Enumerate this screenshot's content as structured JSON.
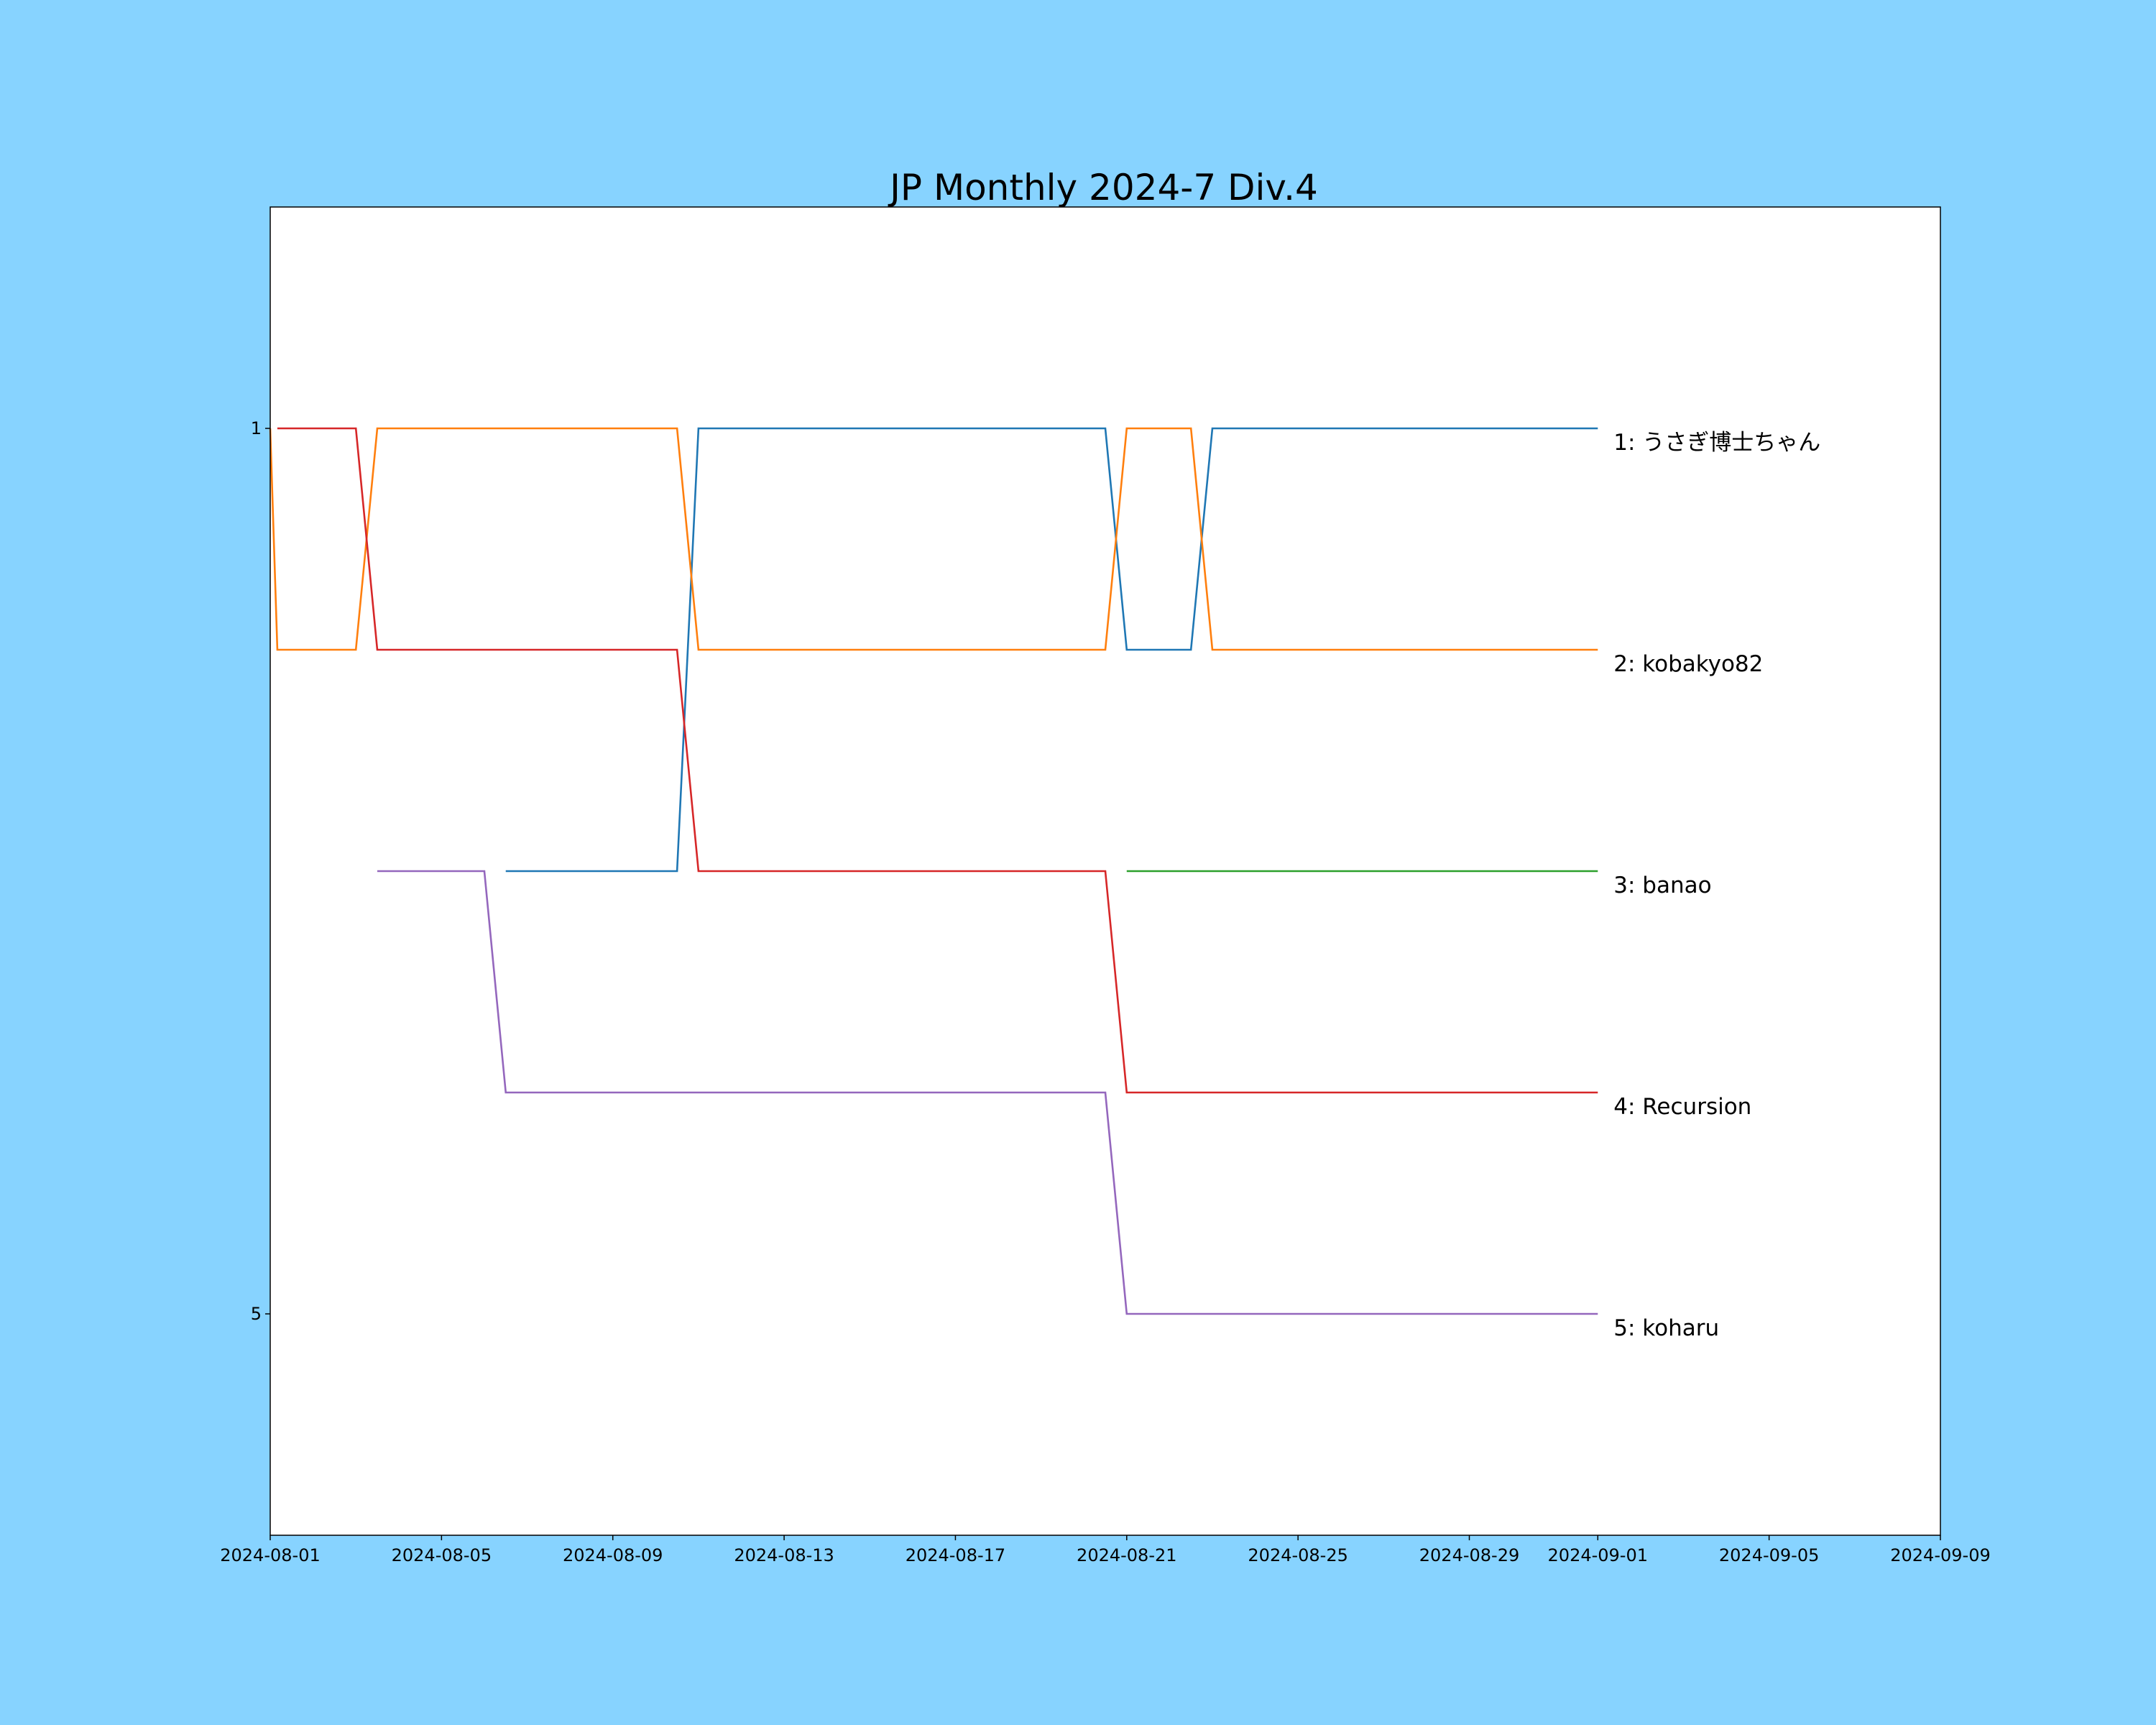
{
  "chart_data": {
    "type": "line",
    "title": "JP Monthly 2024-7 Div.4",
    "xlabel": "",
    "ylabel": "",
    "background_color": "#87d3ff",
    "plot_background_color": "#ffffff",
    "x_axis_type": "date",
    "xlim": [
      "2024-08-01",
      "2024-09-09"
    ],
    "ylim": [
      0,
      6
    ],
    "y_inverted": true,
    "x_ticks": [
      "2024-08-01",
      "2024-08-05",
      "2024-08-09",
      "2024-08-13",
      "2024-08-17",
      "2024-08-21",
      "2024-08-25",
      "2024-08-29",
      "2024-09-01",
      "2024-09-05",
      "2024-09-09"
    ],
    "y_ticks": [
      1,
      5
    ],
    "grid": false,
    "legend": "none",
    "series": [
      {
        "name": "1: うさぎ博士ちゃん",
        "color": "#1f77b4",
        "segments": [
          [
            [
              "2024-08-06 12:00",
              3
            ],
            [
              "2024-08-10 12:00",
              3
            ],
            [
              "2024-08-11 00:00",
              1
            ],
            [
              "2024-08-20 12:00",
              1
            ],
            [
              "2024-08-21 00:00",
              2
            ],
            [
              "2024-08-22 12:00",
              2
            ],
            [
              "2024-08-23 00:00",
              1
            ],
            [
              "2024-09-01 00:00",
              1
            ]
          ]
        ]
      },
      {
        "name": "2: kobakyo82",
        "color": "#ff7f0e",
        "segments": [
          [
            [
              "2024-08-01 00:00",
              1
            ],
            [
              "2024-08-01 04:00",
              2
            ],
            [
              "2024-08-03 00:00",
              2
            ],
            [
              "2024-08-03 12:00",
              1
            ],
            [
              "2024-08-10 12:00",
              1
            ],
            [
              "2024-08-11 00:00",
              2
            ],
            [
              "2024-08-20 12:00",
              2
            ],
            [
              "2024-08-21 00:00",
              1
            ],
            [
              "2024-08-22 12:00",
              1
            ],
            [
              "2024-08-23 00:00",
              2
            ],
            [
              "2024-09-01 00:00",
              2
            ]
          ]
        ]
      },
      {
        "name": "3: banao",
        "color": "#2ca02c",
        "segments": [
          [
            [
              "2024-08-21 00:00",
              3
            ],
            [
              "2024-09-01 00:00",
              3
            ]
          ]
        ]
      },
      {
        "name": "4: Recursion",
        "color": "#d62728",
        "segments": [
          [
            [
              "2024-08-01 04:00",
              1
            ],
            [
              "2024-08-03 00:00",
              1
            ],
            [
              "2024-08-03 12:00",
              2
            ],
            [
              "2024-08-10 12:00",
              2
            ],
            [
              "2024-08-11 00:00",
              3
            ],
            [
              "2024-08-20 12:00",
              3
            ],
            [
              "2024-08-21 00:00",
              4
            ],
            [
              "2024-09-01 00:00",
              4
            ]
          ]
        ]
      },
      {
        "name": "5: koharu",
        "color": "#9467bd",
        "segments": [
          [
            [
              "2024-08-03 12:00",
              3
            ],
            [
              "2024-08-06 00:00",
              3
            ],
            [
              "2024-08-06 12:00",
              4
            ],
            [
              "2024-08-20 12:00",
              4
            ],
            [
              "2024-08-21 00:00",
              5
            ],
            [
              "2024-09-01 00:00",
              5
            ]
          ]
        ]
      }
    ],
    "end_labels": [
      {
        "text": "1: うさぎ博士ちゃん",
        "y": 1
      },
      {
        "text": "2: kobakyo82",
        "y": 2
      },
      {
        "text": "3: banao",
        "y": 3
      },
      {
        "text": "4: Recursion",
        "y": 4
      },
      {
        "text": "5: koharu",
        "y": 5
      }
    ],
    "end_label_x": "2024-09-01"
  }
}
